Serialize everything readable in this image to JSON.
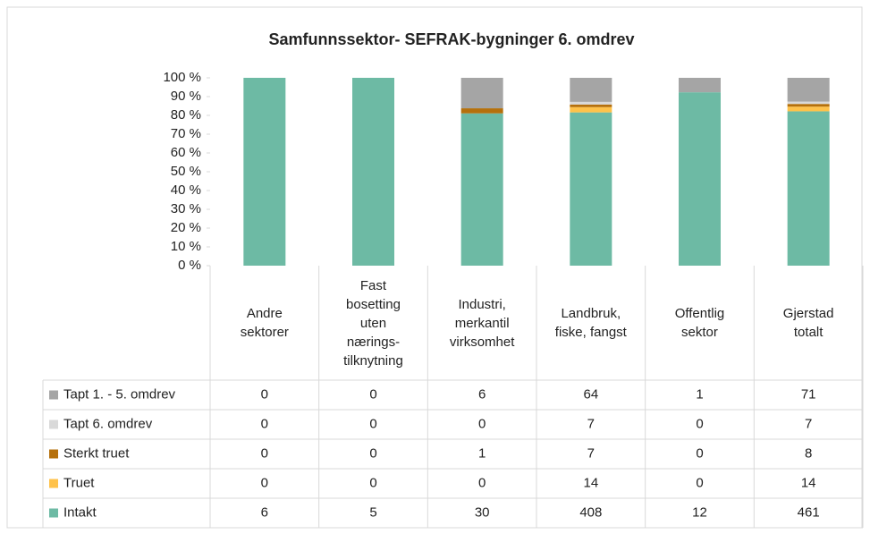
{
  "chart_data": {
    "type": "bar",
    "stacked": "percent",
    "title": "Samfunnssektor- SEFRAK-bygninger 6. omdrev",
    "categories": [
      "Andre sektorer",
      "Fast bosetting uten nærings-tilknytning",
      "Industri, merkantil virksomhet",
      "Landbruk, fiske, fangst",
      "Offentlig sektor",
      "Gjerstad totalt"
    ],
    "series": [
      {
        "name": "Tapt 1. - 5. omdrev",
        "color": "#a5a5a5",
        "values": [
          0,
          0,
          6,
          64,
          1,
          71
        ]
      },
      {
        "name": "Tapt 6. omdrev",
        "color": "#d9d9d9",
        "values": [
          0,
          0,
          0,
          7,
          0,
          7
        ]
      },
      {
        "name": "Sterkt truet",
        "color": "#b5700c",
        "values": [
          0,
          0,
          1,
          7,
          0,
          8
        ]
      },
      {
        "name": "Truet",
        "color": "#ffc24a",
        "values": [
          0,
          0,
          0,
          14,
          0,
          14
        ]
      },
      {
        "name": "Intakt",
        "color": "#6dbaa4",
        "values": [
          6,
          5,
          30,
          408,
          12,
          461
        ]
      }
    ],
    "ylim": [
      0,
      100
    ],
    "yticks": [
      {
        "value": 0,
        "label": "0 %"
      },
      {
        "value": 10,
        "label": "10 %"
      },
      {
        "value": 20,
        "label": "20 %"
      },
      {
        "value": 30,
        "label": "30 %"
      },
      {
        "value": 40,
        "label": "40 %"
      },
      {
        "value": 50,
        "label": "50 %"
      },
      {
        "value": 60,
        "label": "60 %"
      },
      {
        "value": 70,
        "label": "70 %"
      },
      {
        "value": 80,
        "label": "80 %"
      },
      {
        "value": 90,
        "label": "90 %"
      },
      {
        "value": 100,
        "label": "100 %"
      }
    ],
    "data_table": true
  }
}
